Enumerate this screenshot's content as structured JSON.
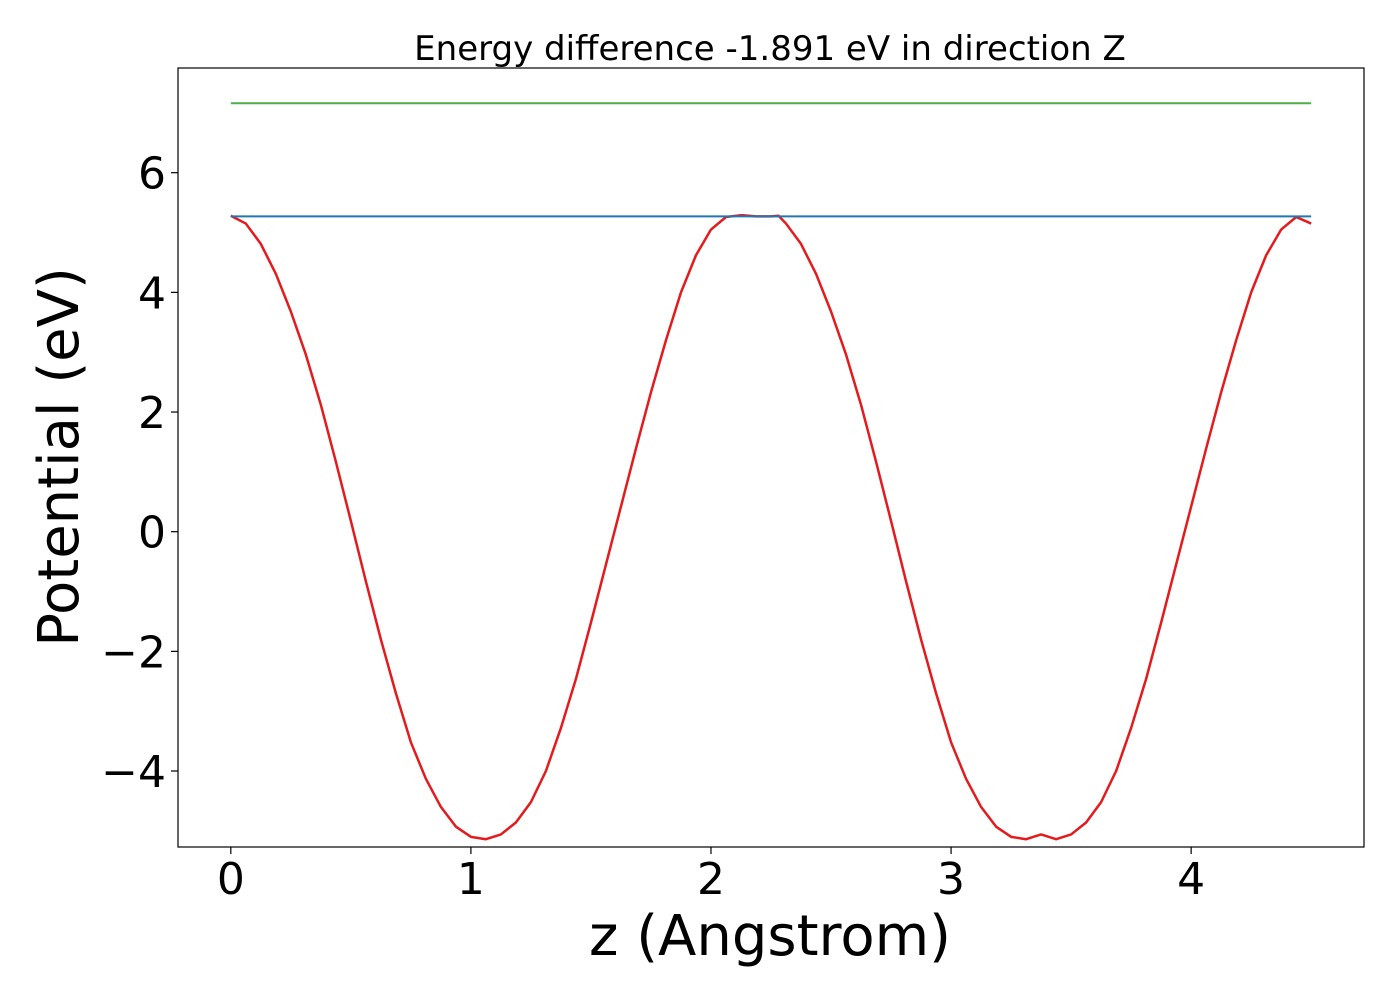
{
  "chart_data": {
    "type": "line",
    "title": "Energy difference -1.891 eV in direction Z",
    "xlabel": "z (Angstrom)",
    "ylabel": "Potential (eV)",
    "xlim": [
      -0.22,
      4.72
    ],
    "ylim": [
      -5.27,
      7.75
    ],
    "xticks": [
      0,
      1,
      2,
      3,
      4
    ],
    "xtick_labels": [
      "0",
      "1",
      "2",
      "3",
      "4"
    ],
    "yticks": [
      -4,
      -2,
      0,
      2,
      4,
      6
    ],
    "ytick_labels": [
      "−4",
      "−2",
      "0",
      "2",
      "4",
      "6"
    ],
    "grid": false,
    "legend": "none",
    "series": [
      {
        "color": "#e41a1c",
        "x": [
          0,
          0.0625,
          0.125,
          0.1875,
          0.25,
          0.3125,
          0.375,
          0.4375,
          0.5,
          0.5625,
          0.625,
          0.6875,
          0.75,
          0.8125,
          0.875,
          0.9375,
          1.0,
          1.0625,
          1.125,
          1.1875,
          1.25,
          1.3125,
          1.375,
          1.4375,
          1.5,
          1.5625,
          1.625,
          1.6875,
          1.75,
          1.8125,
          1.875,
          1.9375,
          2.0,
          2.0625,
          2.125,
          2.1875,
          2.25,
          2.2812,
          2.3125,
          2.375,
          2.4375,
          2.5,
          2.5625,
          2.625,
          2.6875,
          2.75,
          2.8125,
          2.875,
          2.9375,
          3.0,
          3.0625,
          3.125,
          3.1875,
          3.25,
          3.3125,
          3.375,
          3.4062,
          3.4375,
          3.5,
          3.5625,
          3.625,
          3.6875,
          3.75,
          3.8125,
          3.875,
          3.9375,
          4.0,
          4.0625,
          4.125,
          4.1875,
          4.25,
          4.3125,
          4.375,
          4.4375,
          4.5
        ],
        "y": [
          5.28,
          5.15,
          4.81,
          4.31,
          3.68,
          2.96,
          2.12,
          1.17,
          0.18,
          -0.83,
          -1.8,
          -2.7,
          -3.52,
          -4.13,
          -4.6,
          -4.93,
          -5.1,
          -5.14,
          -5.06,
          -4.86,
          -4.52,
          -4.0,
          -3.28,
          -2.46,
          -1.52,
          -0.55,
          0.42,
          1.39,
          2.33,
          3.2,
          4.0,
          4.62,
          5.05,
          5.26,
          5.29,
          5.27,
          5.27,
          5.28,
          5.15,
          4.81,
          4.31,
          3.68,
          2.96,
          2.12,
          1.17,
          0.18,
          -0.83,
          -1.8,
          -2.7,
          -3.52,
          -4.13,
          -4.6,
          -4.93,
          -5.1,
          -5.14,
          -5.06,
          -5.1,
          -5.14,
          -5.06,
          -4.86,
          -4.52,
          -4.0,
          -3.28,
          -2.46,
          -1.52,
          -0.55,
          0.42,
          1.39,
          2.33,
          3.2,
          4.0,
          4.62,
          5.05,
          5.26,
          5.15
        ]
      },
      {
        "color": "#1f77b4",
        "x": [
          0,
          4.5
        ],
        "y": [
          5.27,
          5.27
        ]
      },
      {
        "color": "#4daf4a",
        "x": [
          0,
          4.5
        ],
        "y": [
          7.16,
          7.16
        ]
      }
    ]
  }
}
